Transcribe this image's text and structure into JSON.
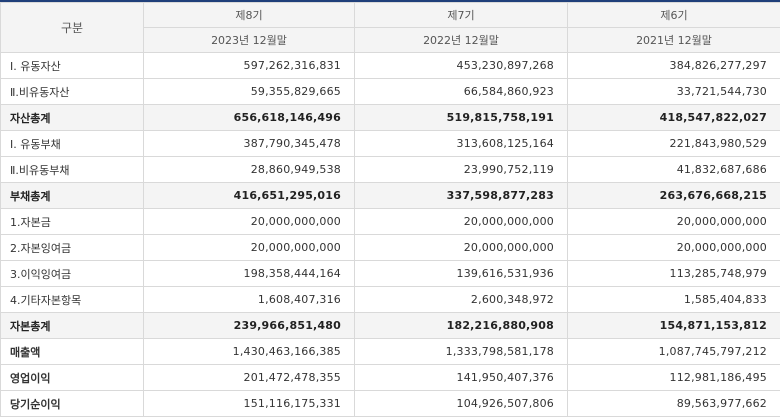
{
  "table": {
    "header": {
      "gubun": "구분",
      "periods": [
        "제8기",
        "제7기",
        "제6기"
      ],
      "dates": [
        "2023년 12월말",
        "2022년 12월말",
        "2021년 12월말"
      ]
    },
    "rows": [
      {
        "label": "Ⅰ. 유동자산",
        "values": [
          "597,262,316,831",
          "453,230,897,268",
          "384,826,277,297"
        ],
        "style": "normal"
      },
      {
        "label": "Ⅱ.비유동자산",
        "values": [
          "59,355,829,665",
          "66,584,860,923",
          "33,721,544,730"
        ],
        "style": "normal"
      },
      {
        "label": "자산총계",
        "values": [
          "656,618,146,496",
          "519,815,758,191",
          "418,547,822,027"
        ],
        "style": "total"
      },
      {
        "label": "Ⅰ. 유동부채",
        "values": [
          "387,790,345,478",
          "313,608,125,164",
          "221,843,980,529"
        ],
        "style": "normal"
      },
      {
        "label": "Ⅱ.비유동부채",
        "values": [
          "28,860,949,538",
          "23,990,752,119",
          "41,832,687,686"
        ],
        "style": "normal"
      },
      {
        "label": "부채총계",
        "values": [
          "416,651,295,016",
          "337,598,877,283",
          "263,676,668,215"
        ],
        "style": "total"
      },
      {
        "label": "1.자본금",
        "values": [
          "20,000,000,000",
          "20,000,000,000",
          "20,000,000,000"
        ],
        "style": "normal"
      },
      {
        "label": "2.자본잉여금",
        "values": [
          "20,000,000,000",
          "20,000,000,000",
          "20,000,000,000"
        ],
        "style": "normal"
      },
      {
        "label": "3.이익잉여금",
        "values": [
          "198,358,444,164",
          "139,616,531,936",
          "113,285,748,979"
        ],
        "style": "normal"
      },
      {
        "label": "4.기타자본항목",
        "values": [
          "1,608,407,316",
          "2,600,348,972",
          "1,585,404,833"
        ],
        "style": "normal"
      },
      {
        "label": "자본총계",
        "values": [
          "239,966,851,480",
          "182,216,880,908",
          "154,871,153,812"
        ],
        "style": "total"
      },
      {
        "label": "매출액",
        "values": [
          "1,430,463,166,385",
          "1,333,798,581,178",
          "1,087,745,797,212"
        ],
        "style": "bold"
      },
      {
        "label": "영업이익",
        "values": [
          "201,472,478,355",
          "141,950,407,376",
          "112,981,186,495"
        ],
        "style": "bold"
      },
      {
        "label": "당기순이익",
        "values": [
          "151,116,175,331",
          "104,926,507,806",
          "89,563,977,662"
        ],
        "style": "bold"
      }
    ]
  }
}
